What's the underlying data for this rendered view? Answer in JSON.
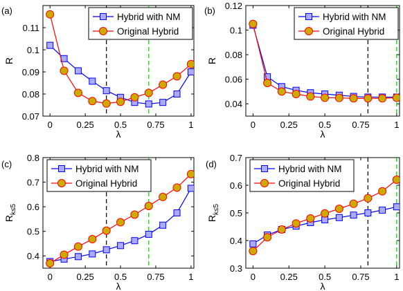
{
  "figure": {
    "colors": {
      "nm": "#0000ff",
      "nm_fill": "#aaaaff",
      "orig": "#ff0000",
      "orig_fill": "#ccaa00",
      "vline_black": "#000000",
      "vline_green": "#00cc00"
    }
  },
  "chart_data": [
    {
      "type": "line",
      "panel_label": "(a)",
      "ylabel": "R",
      "xlabel": "λ",
      "xlim": [
        -0.05,
        1.02
      ],
      "ylim": [
        0.07,
        0.12
      ],
      "x_ticks": [
        0,
        0.25,
        0.5,
        0.75,
        1
      ],
      "x_tick_labels": [
        "0",
        "0.25",
        "0.5",
        "0.75",
        "1"
      ],
      "y_ticks": [
        0.07,
        0.08,
        0.09,
        0.1,
        0.11
      ],
      "y_tick_labels": [
        "0.07",
        "0.08",
        "0.09",
        "0.1",
        "0.11"
      ],
      "vlines": [
        {
          "x": 0.4,
          "style": "black-dashed"
        },
        {
          "x": 0.7,
          "style": "green-dashed"
        }
      ],
      "legend": "top-right",
      "x": [
        0,
        0.1,
        0.2,
        0.3,
        0.4,
        0.5,
        0.6,
        0.7,
        0.8,
        0.9,
        1.0
      ],
      "series": [
        {
          "name": "Hybrid with NM",
          "marker": "square",
          "values": [
            0.102,
            0.096,
            0.0905,
            0.0858,
            0.0815,
            0.0785,
            0.0762,
            0.0755,
            0.0762,
            0.08,
            0.09
          ]
        },
        {
          "name": "Original Hybrid",
          "marker": "circle",
          "values": [
            0.116,
            0.0905,
            0.0805,
            0.0768,
            0.0757,
            0.0765,
            0.0785,
            0.0805,
            0.0842,
            0.088,
            0.0935
          ]
        }
      ]
    },
    {
      "type": "line",
      "panel_label": "(b)",
      "ylabel": "R",
      "xlabel": "λ",
      "xlim": [
        -0.05,
        1.02
      ],
      "ylim": [
        0.03,
        0.12
      ],
      "x_ticks": [
        0,
        0.25,
        0.5,
        0.75,
        1
      ],
      "x_tick_labels": [
        "0",
        "0.25",
        "0.5",
        "0.75",
        "1"
      ],
      "y_ticks": [
        0.04,
        0.06,
        0.08,
        0.1,
        0.12
      ],
      "y_tick_labels": [
        "0.04",
        "0.06",
        "0.08",
        "0.1",
        "0.12"
      ],
      "vlines": [
        {
          "x": 0.8,
          "style": "black-dashed"
        },
        {
          "x": 1.0,
          "style": "green-dashed"
        }
      ],
      "legend": "top-right",
      "x": [
        0,
        0.1,
        0.2,
        0.3,
        0.4,
        0.5,
        0.6,
        0.7,
        0.8,
        0.9,
        1.0
      ],
      "series": [
        {
          "name": "Hybrid with NM",
          "marker": "square",
          "values": [
            0.104,
            0.062,
            0.054,
            0.051,
            0.049,
            0.048,
            0.047,
            0.046,
            0.0455,
            0.0455,
            0.0455
          ]
        },
        {
          "name": "Original Hybrid",
          "marker": "circle",
          "values": [
            0.105,
            0.057,
            0.05,
            0.048,
            0.046,
            0.045,
            0.0448,
            0.0445,
            0.0445,
            0.0445,
            0.045
          ]
        }
      ]
    },
    {
      "type": "line",
      "panel_label": "(c)",
      "ylabel": "R",
      "ylabel_sub": "k≤5",
      "xlabel": "λ",
      "xlim": [
        -0.05,
        1.02
      ],
      "ylim": [
        0.35,
        0.8
      ],
      "x_ticks": [
        0,
        0.25,
        0.5,
        0.75,
        1
      ],
      "x_tick_labels": [
        "0",
        "0.25",
        "0.5",
        "0.75",
        "1"
      ],
      "y_ticks": [
        0.4,
        0.5,
        0.6,
        0.7,
        0.8
      ],
      "y_tick_labels": [
        "0.4",
        "0.5",
        "0.6",
        "0.7",
        "0.8"
      ],
      "vlines": [
        {
          "x": 0.4,
          "style": "black-dashed"
        },
        {
          "x": 0.7,
          "style": "green-dashed"
        }
      ],
      "legend": "top-left",
      "x": [
        0,
        0.1,
        0.2,
        0.3,
        0.4,
        0.5,
        0.6,
        0.7,
        0.8,
        0.9,
        1.0
      ],
      "series": [
        {
          "name": "Hybrid with NM",
          "marker": "square",
          "values": [
            0.377,
            0.387,
            0.397,
            0.408,
            0.425,
            0.442,
            0.462,
            0.488,
            0.525,
            0.575,
            0.675
          ]
        },
        {
          "name": "Original Hybrid",
          "marker": "circle",
          "values": [
            0.37,
            0.405,
            0.438,
            0.468,
            0.503,
            0.537,
            0.568,
            0.603,
            0.64,
            0.678,
            0.733
          ]
        }
      ]
    },
    {
      "type": "line",
      "panel_label": "(d)",
      "ylabel": "R",
      "ylabel_sub": "k≤5",
      "xlabel": "λ",
      "xlim": [
        -0.05,
        1.02
      ],
      "ylim": [
        0.3,
        0.7
      ],
      "x_ticks": [
        0,
        0.25,
        0.5,
        0.75,
        1
      ],
      "x_tick_labels": [
        "0",
        "0.25",
        "0.5",
        "0.75",
        "1"
      ],
      "y_ticks": [
        0.3,
        0.4,
        0.5,
        0.6,
        0.7
      ],
      "y_tick_labels": [
        "0.3",
        "0.4",
        "0.5",
        "0.6",
        "0.7"
      ],
      "vlines": [
        {
          "x": 0.8,
          "style": "black-dashed"
        },
        {
          "x": 1.0,
          "style": "green-dashed"
        }
      ],
      "legend": "top-left",
      "x": [
        0,
        0.1,
        0.2,
        0.3,
        0.4,
        0.5,
        0.6,
        0.7,
        0.8,
        0.9,
        1.0
      ],
      "series": [
        {
          "name": "Hybrid with NM",
          "marker": "square",
          "values": [
            0.388,
            0.42,
            0.44,
            0.452,
            0.465,
            0.475,
            0.483,
            0.492,
            0.5,
            0.51,
            0.522
          ]
        },
        {
          "name": "Original Hybrid",
          "marker": "circle",
          "values": [
            0.362,
            0.412,
            0.44,
            0.462,
            0.48,
            0.498,
            0.515,
            0.533,
            0.553,
            0.578,
            0.62
          ]
        }
      ]
    }
  ]
}
